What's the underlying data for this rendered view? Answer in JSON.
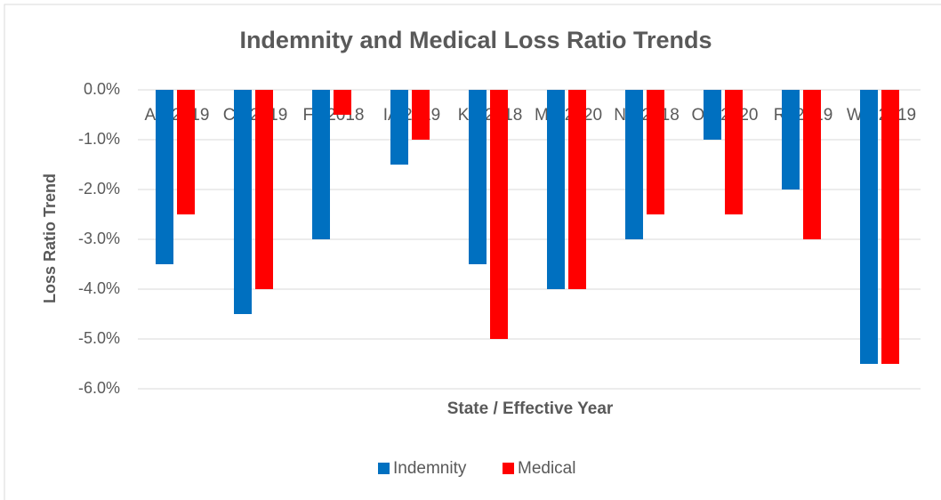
{
  "chart_data": {
    "type": "bar",
    "title": "Indemnity and Medical Loss Ratio Trends",
    "x_label": "State / Effective Year",
    "y_label": "Loss Ratio Trend",
    "categories": [
      "AK 2019",
      "CT 2019",
      "FL 2018",
      "IA 2019",
      "KY 2018",
      "MS 2020",
      "NY 2018",
      "OK 2020",
      "RI 2019",
      "WV 2019"
    ],
    "series": [
      {
        "name": "Indemnity",
        "color": "#0070c0",
        "values": [
          -3.5,
          -4.5,
          -3.0,
          -1.5,
          -3.5,
          -4.0,
          -3.0,
          -1.0,
          -2.0,
          -5.5
        ]
      },
      {
        "name": "Medical",
        "color": "#ff0000",
        "values": [
          -2.5,
          -4.0,
          -0.5,
          -1.0,
          -5.0,
          -4.0,
          -2.5,
          -2.5,
          -3.0,
          -5.5
        ]
      }
    ],
    "ylim": [
      -6,
      0
    ],
    "yticks": [
      {
        "value": 0,
        "label": "0.0%"
      },
      {
        "value": -1,
        "label": "-1.0%"
      },
      {
        "value": -2,
        "label": "-2.0%"
      },
      {
        "value": -3,
        "label": "-3.0%"
      },
      {
        "value": -4,
        "label": "-4.0%"
      },
      {
        "value": -5,
        "label": "-5.0%"
      },
      {
        "value": -6,
        "label": "-6.0%"
      }
    ],
    "grid": true,
    "legend": "bottom"
  }
}
